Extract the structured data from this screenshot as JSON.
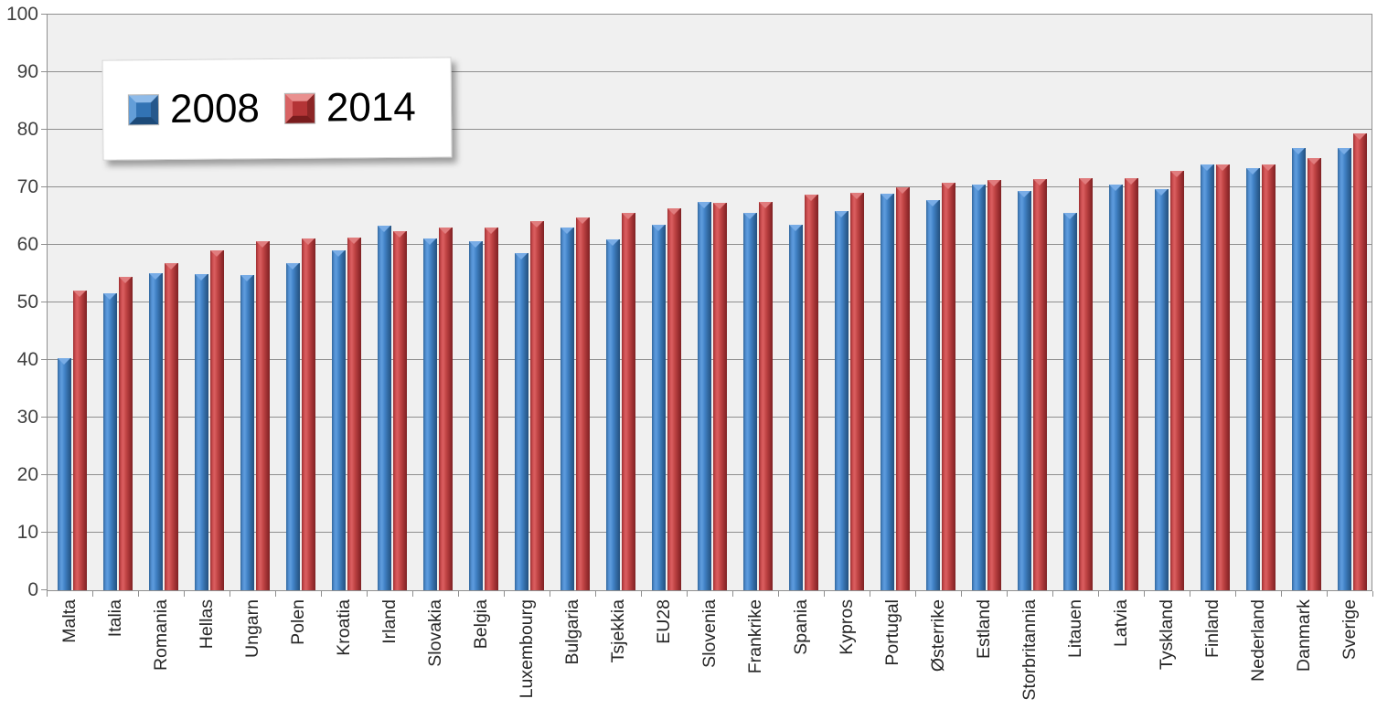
{
  "chart_data": {
    "type": "bar",
    "categories": [
      "Malta",
      "Italia",
      "Romania",
      "Hellas",
      "Ungarn",
      "Polen",
      "Kroatia",
      "Irland",
      "Slovakia",
      "Belgia",
      "Luxembourg",
      "Bulgaria",
      "Tsjekkia",
      "EU28",
      "Slovenia",
      "Frankrike",
      "Spania",
      "Kypros",
      "Portugal",
      "Østerrike",
      "Estland",
      "Storbritannia",
      "Litauen",
      "Latvia",
      "Tyskland",
      "Finland",
      "Nederland",
      "Danmark",
      "Sverige"
    ],
    "series": [
      {
        "name": "2008",
        "color": "#3D7BBF",
        "values": [
          40.3,
          51.6,
          55.1,
          54.9,
          54.7,
          56.9,
          59.0,
          63.3,
          61.1,
          60.7,
          58.6,
          63.0,
          61.0,
          63.5,
          67.5,
          65.5,
          63.5,
          65.8,
          68.9,
          67.7,
          70.4,
          69.4,
          65.5,
          70.4,
          69.7,
          73.9,
          73.3,
          76.9,
          76.8
        ]
      },
      {
        "name": "2014",
        "color": "#C03B3D",
        "values": [
          52.0,
          54.4,
          56.8,
          59.0,
          60.6,
          61.1,
          61.2,
          62.4,
          63.0,
          63.0,
          64.1,
          64.8,
          65.6,
          66.4,
          67.3,
          67.5,
          68.8,
          69.0,
          70.0,
          70.8,
          71.2,
          71.4,
          71.6,
          71.6,
          72.8,
          74.0,
          73.9,
          75.0,
          79.4
        ]
      }
    ],
    "ylim": [
      0,
      100
    ],
    "y_ticks": [
      0,
      10,
      20,
      30,
      40,
      50,
      60,
      70,
      80,
      90,
      100
    ],
    "grid": "horizontal",
    "legend_position": "top-left",
    "plot_background": "#f0f0f0",
    "gridline_color": "#8f8f8f"
  }
}
